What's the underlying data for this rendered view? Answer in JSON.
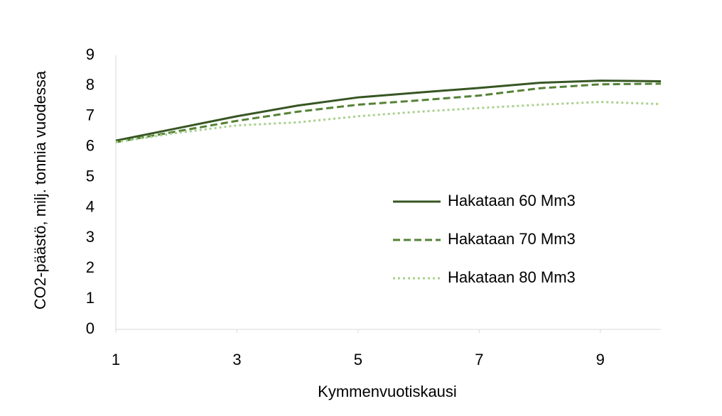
{
  "chart_data": {
    "type": "line",
    "x": [
      1,
      2,
      3,
      4,
      5,
      6,
      7,
      8,
      9,
      10
    ],
    "series": [
      {
        "name": "Hakataan 60 Mm3",
        "color": "#375623",
        "dash": "solid",
        "values": [
          6.2,
          6.6,
          7.0,
          7.35,
          7.62,
          7.78,
          7.93,
          8.1,
          8.17,
          8.15
        ]
      },
      {
        "name": "Hakataan 70 Mm3",
        "color": "#548235",
        "dash": "dashed",
        "values": [
          6.15,
          6.5,
          6.85,
          7.15,
          7.38,
          7.52,
          7.68,
          7.92,
          8.05,
          8.07
        ]
      },
      {
        "name": "Hakataan 80 Mm3",
        "color": "#a9d18e",
        "dash": "dotted",
        "values": [
          6.15,
          6.45,
          6.7,
          6.8,
          7.0,
          7.15,
          7.27,
          7.38,
          7.47,
          7.4
        ]
      }
    ],
    "xlabel": "Kymmenvuotiskausi",
    "ylabel": "CO2-päästö, milj. tonnia vuodessa",
    "xlim": [
      1,
      10
    ],
    "xticks": [
      1,
      3,
      5,
      7,
      9
    ],
    "ylim": [
      0,
      9
    ],
    "yticks": [
      0,
      1,
      2,
      3,
      4,
      5,
      6,
      7,
      8,
      9
    ],
    "grid": false
  }
}
